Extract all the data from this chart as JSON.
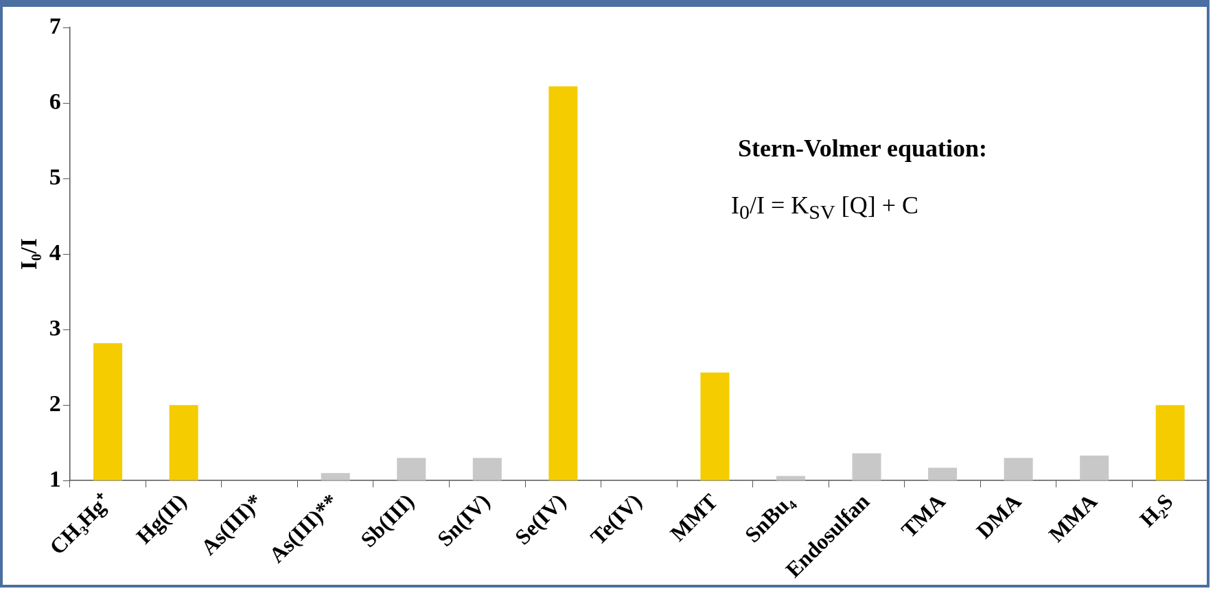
{
  "chart_data": {
    "type": "bar",
    "categories": [
      "CH₃Hg⁺",
      "Hg(II)",
      "As(III)*",
      "As(III)**",
      "Sb(III)",
      "Sn(IV)",
      "Se(IV)",
      "Te(IV)",
      "MMT",
      "SnBu₄",
      "Endosulfan",
      "TMA",
      "DMA",
      "MMA",
      "H₂S"
    ],
    "values": [
      2.82,
      2.0,
      null,
      1.1,
      1.3,
      1.3,
      6.22,
      null,
      2.43,
      1.06,
      1.36,
      1.17,
      1.3,
      1.33,
      2.0
    ],
    "colors": [
      "#f5cc00",
      "#f5cc00",
      "#c8c8c8",
      "#c8c8c8",
      "#c8c8c8",
      "#c8c8c8",
      "#f5cc00",
      "#c8c8c8",
      "#f5cc00",
      "#c8c8c8",
      "#c8c8c8",
      "#c8c8c8",
      "#c8c8c8",
      "#c8c8c8",
      "#f5cc00"
    ],
    "ylabel": "I₀/I",
    "ylim": [
      1,
      7
    ],
    "yticks": [
      1,
      2,
      3,
      4,
      5,
      6,
      7
    ],
    "grid": false,
    "legend": false,
    "annotations": [
      "Stern-Volmer equation:",
      "I$_{0}$/I = K$_{SV}$ [Q] + C"
    ]
  }
}
